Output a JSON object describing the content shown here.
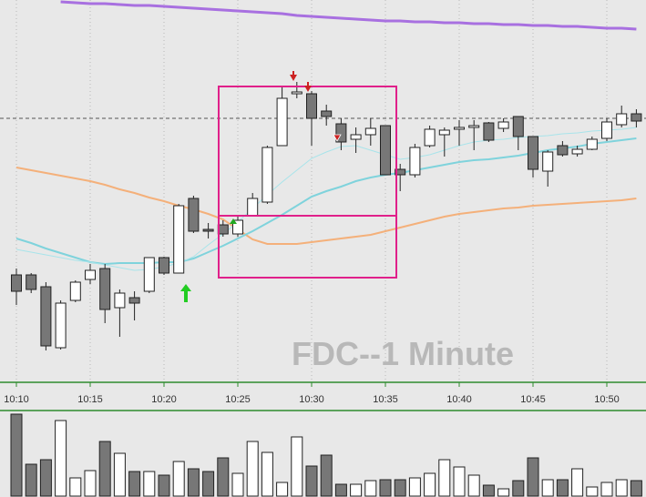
{
  "chart_data": {
    "type": "candlestick",
    "title": "FDC--1 Minute",
    "categories": [
      "10:10",
      null,
      null,
      null,
      null,
      "10:15",
      null,
      null,
      null,
      null,
      "10:20",
      null,
      null,
      null,
      null,
      "10:25",
      null,
      null,
      null,
      null,
      "10:30",
      null,
      null,
      null,
      null,
      "10:35",
      null,
      null,
      null,
      null,
      "10:40",
      null,
      null,
      null,
      null,
      "10:45",
      null,
      null,
      null,
      null,
      "10:50",
      null,
      null
    ],
    "open": [
      118,
      118,
      105,
      38,
      90,
      113,
      125,
      82,
      93,
      100,
      137,
      120,
      202,
      168,
      173,
      163,
      183,
      198,
      260,
      317,
      317,
      298,
      284,
      267,
      272,
      282,
      234,
      228,
      260,
      272,
      278,
      280,
      285,
      279,
      292,
      270,
      232,
      260,
      251,
      256,
      268,
      283,
      295
    ],
    "high": [
      125,
      120,
      110,
      90,
      112,
      130,
      130,
      102,
      100,
      137,
      138,
      196,
      205,
      175,
      178,
      182,
      208,
      260,
      324,
      330,
      320,
      305,
      290,
      280,
      290,
      282,
      240,
      262,
      282,
      280,
      288,
      288,
      286,
      290,
      292,
      270,
      255,
      265,
      260,
      270,
      290,
      304,
      300
    ],
    "low": [
      85,
      98,
      35,
      36,
      88,
      108,
      65,
      50,
      68,
      98,
      118,
      120,
      164,
      158,
      160,
      160,
      183,
      196,
      260,
      312,
      260,
      282,
      255,
      252,
      260,
      228,
      210,
      225,
      258,
      248,
      260,
      255,
      264,
      275,
      255,
      225,
      215,
      248,
      248,
      255,
      265,
      280,
      280
    ],
    "close": [
      100,
      102,
      40,
      87,
      110,
      123,
      80,
      98,
      87,
      137,
      120,
      194,
      166,
      166,
      163,
      178,
      202,
      258,
      312,
      319,
      290,
      292,
      264,
      272,
      279,
      228,
      228,
      258,
      278,
      277,
      280,
      282,
      266,
      286,
      270,
      234,
      253,
      250,
      256,
      267,
      286,
      295,
      287
    ],
    "ylim": [
      0,
      420
    ],
    "up_color": "#ffffff",
    "down_color": "#777777",
    "reference_line": 290,
    "lines": [
      {
        "color": "#a870e0",
        "values": [
          null,
          null,
          null,
          418,
          417,
          416,
          416,
          415,
          414,
          414,
          413,
          412,
          411,
          410,
          409,
          408,
          407,
          406,
          405,
          403,
          402,
          401,
          400,
          399,
          398,
          397,
          397,
          396,
          396,
          395,
          395,
          394,
          394,
          393,
          393,
          392,
          392,
          391,
          391,
          390,
          389,
          389,
          388
        ]
      },
      {
        "color": "#f4b07a",
        "values": [
          236,
          233,
          230,
          227,
          224,
          221,
          217,
          212,
          208,
          203,
          199,
          194,
          190,
          185,
          179,
          168,
          157,
          152,
          152,
          152,
          154,
          156,
          158,
          160,
          162,
          166,
          170,
          174,
          178,
          182,
          185,
          187,
          189,
          191,
          192,
          194,
          195,
          196,
          197,
          198,
          199,
          200,
          202
        ]
      },
      {
        "color": "#7fd3dc",
        "values": [
          158,
          153,
          147,
          142,
          137,
          132,
          130,
          131,
          131,
          131,
          132,
          132,
          136,
          143,
          150,
          158,
          166,
          175,
          184,
          194,
          204,
          210,
          215,
          221,
          225,
          228,
          230,
          233,
          236,
          239,
          242,
          244,
          245,
          247,
          249,
          252,
          255,
          257,
          259,
          262,
          264,
          266,
          268
        ]
      },
      {
        "color": "#a8e4ea",
        "values": [
          146,
          143,
          140,
          137,
          134,
          132,
          129,
          126,
          123,
          124,
          127,
          131,
          138,
          151,
          163,
          176,
          191,
          206,
          220,
          233,
          246,
          253,
          259,
          260,
          255,
          250,
          245,
          247,
          250,
          255,
          260,
          264,
          266,
          267,
          269,
          270,
          271,
          273,
          274,
          276,
          277,
          278,
          280
        ]
      }
    ],
    "volume": {
      "values": [
        90,
        35,
        40,
        83,
        20,
        28,
        60,
        47,
        27,
        27,
        23,
        38,
        30,
        27,
        42,
        25,
        60,
        48,
        15,
        65,
        33,
        45,
        13,
        13,
        17,
        18,
        18,
        20,
        25,
        40,
        32,
        23,
        12,
        8,
        17,
        42,
        18,
        18,
        30,
        10,
        15,
        18,
        17
      ],
      "ylim": [
        0,
        90
      ]
    }
  }
}
